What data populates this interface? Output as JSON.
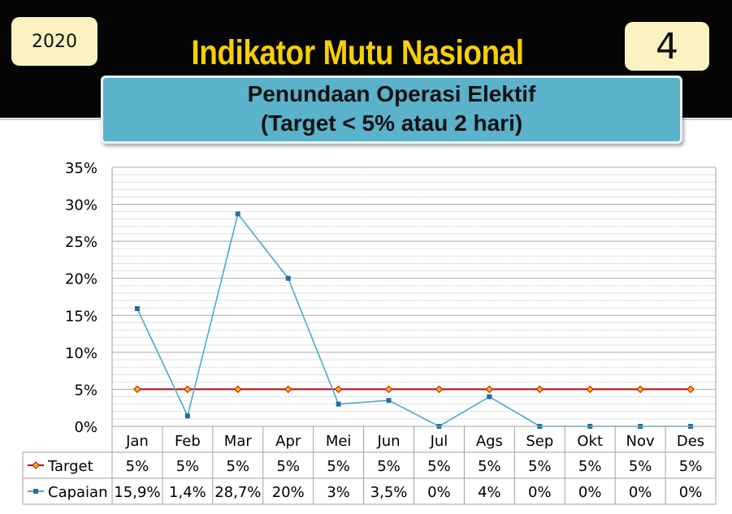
{
  "header": {
    "year": "2020",
    "title": "Indikator Mutu Nasional",
    "number": "4",
    "subtitle_line1": "Penundaan Operasi Elektif",
    "subtitle_line2": "(Target < 5% atau 2 hari)"
  },
  "colors": {
    "header_bg": "#050505",
    "title": "#f6d000",
    "badge_bg": "#fbf2c0",
    "subtitle_bg": "#5ab2cb",
    "target_line": "#c0000b",
    "target_marker": "#f5b800",
    "capaian_line": "#4aabcb",
    "capaian_marker": "#1f6fa0"
  },
  "chart_data": {
    "type": "line",
    "categories": [
      "Jan",
      "Feb",
      "Mar",
      "Apr",
      "Mei",
      "Jun",
      "Jul",
      "Ags",
      "Sep",
      "Okt",
      "Nov",
      "Des"
    ],
    "y_ticks": [
      "0%",
      "5%",
      "10%",
      "15%",
      "20%",
      "25%",
      "30%",
      "35%"
    ],
    "ylim": [
      0,
      35
    ],
    "grid": true,
    "legend": "data-table",
    "series": [
      {
        "name": "Target",
        "values": [
          5,
          5,
          5,
          5,
          5,
          5,
          5,
          5,
          5,
          5,
          5,
          5
        ],
        "labels": [
          "5%",
          "5%",
          "5%",
          "5%",
          "5%",
          "5%",
          "5%",
          "5%",
          "5%",
          "5%",
          "5%",
          "5%"
        ]
      },
      {
        "name": "Capaian",
        "values": [
          15.9,
          1.4,
          28.7,
          20,
          3,
          3.5,
          0,
          4,
          0,
          0,
          0,
          0
        ],
        "labels": [
          "15,9%",
          "1,4%",
          "28,7%",
          "20%",
          "3%",
          "3,5%",
          "0%",
          "4%",
          "0%",
          "0%",
          "0%",
          "0%"
        ]
      }
    ]
  }
}
